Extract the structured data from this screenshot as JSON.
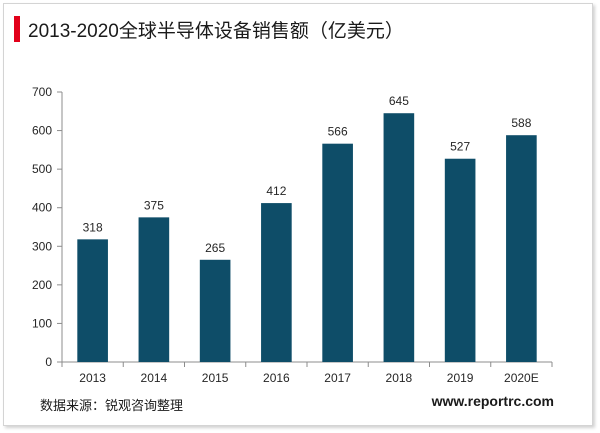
{
  "title": "2013-2020全球半导体设备销售额（亿美元）",
  "source": "数据来源：锐观咨询整理",
  "website": "www.reportrc.com",
  "colors": {
    "bar": "#0e4d68",
    "accent": "#e2001a",
    "axis": "#8c8c8c"
  },
  "chart_data": {
    "type": "bar",
    "categories": [
      "2013",
      "2014",
      "2015",
      "2016",
      "2017",
      "2018",
      "2019",
      "2020E"
    ],
    "values": [
      318,
      375,
      265,
      412,
      566,
      645,
      527,
      588
    ],
    "ylim": [
      0,
      700
    ],
    "yticks": [
      0,
      100,
      200,
      300,
      400,
      500,
      600,
      700
    ],
    "grid": false,
    "legend": "none"
  }
}
